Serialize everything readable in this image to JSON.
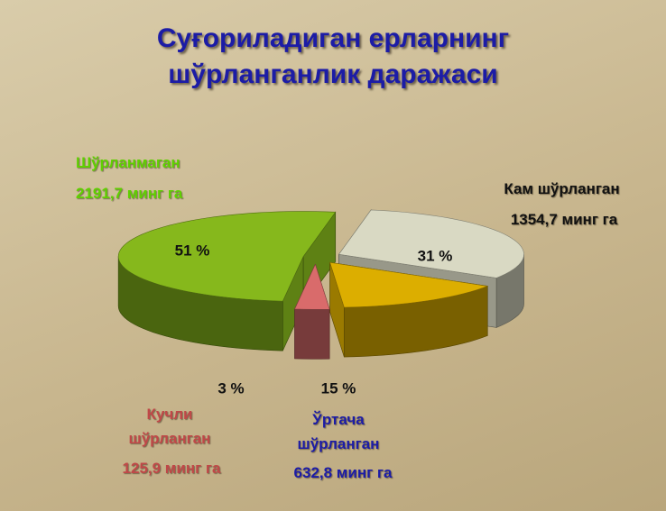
{
  "chart_data": {
    "type": "pie",
    "title": [
      "Суғориладиган ерларнинг",
      "шўрланганлик даражаси"
    ],
    "categories": [
      "Кам шўрланган",
      "Ўртача шўрланган",
      "Кучли шўрланган",
      "Шўрланмаган"
    ],
    "values": [
      31,
      15,
      3,
      51
    ],
    "value_labels": [
      "31 %",
      "15 %",
      "3 %",
      "51 %"
    ],
    "area_labels": [
      "1354,7 минг га",
      "632,8 минг га",
      "125,9 минг га",
      "2191,7 минг га"
    ],
    "colors": [
      "#d9d9c3",
      "#dcae00",
      "#d96b6b",
      "#86b81c"
    ],
    "label_colors": [
      "#111111",
      "#1c1ca6",
      "#c04848",
      "#5fd000"
    ]
  }
}
